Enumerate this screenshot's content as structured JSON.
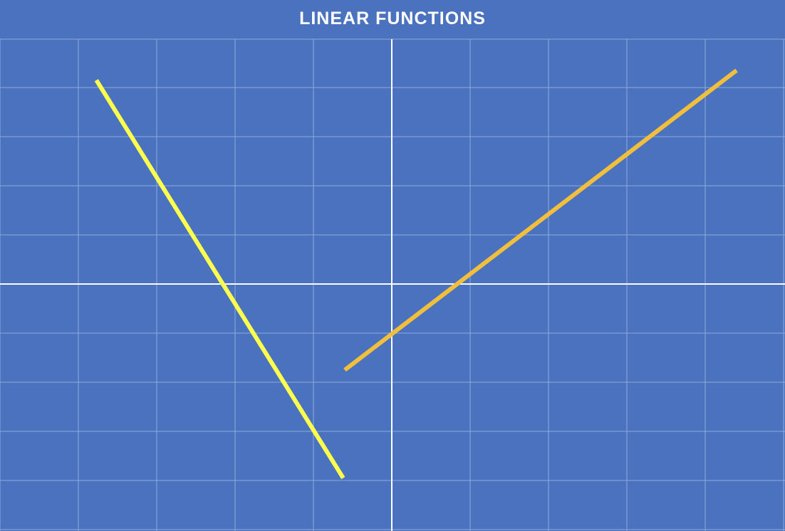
{
  "slide": {
    "title": "LINEAR FUNCTIONS",
    "background_color": "#4a72bf"
  },
  "chart_data": {
    "type": "line",
    "title": "LINEAR FUNCTIONS",
    "xlabel": "",
    "ylabel": "",
    "xlim": [
      -5,
      5
    ],
    "ylim": [
      -5,
      5
    ],
    "grid": true,
    "axes_color": "#ffffff",
    "grid_color": "#8fa9da",
    "series": [
      {
        "color": "#ffff4d",
        "x": [
          -3.77,
          -0.62
        ],
        "y": [
          4.15,
          -3.95
        ]
      },
      {
        "color": "#f2bf3c",
        "x": [
          -0.6,
          4.4
        ],
        "y": [
          -1.75,
          4.35
        ]
      }
    ]
  }
}
